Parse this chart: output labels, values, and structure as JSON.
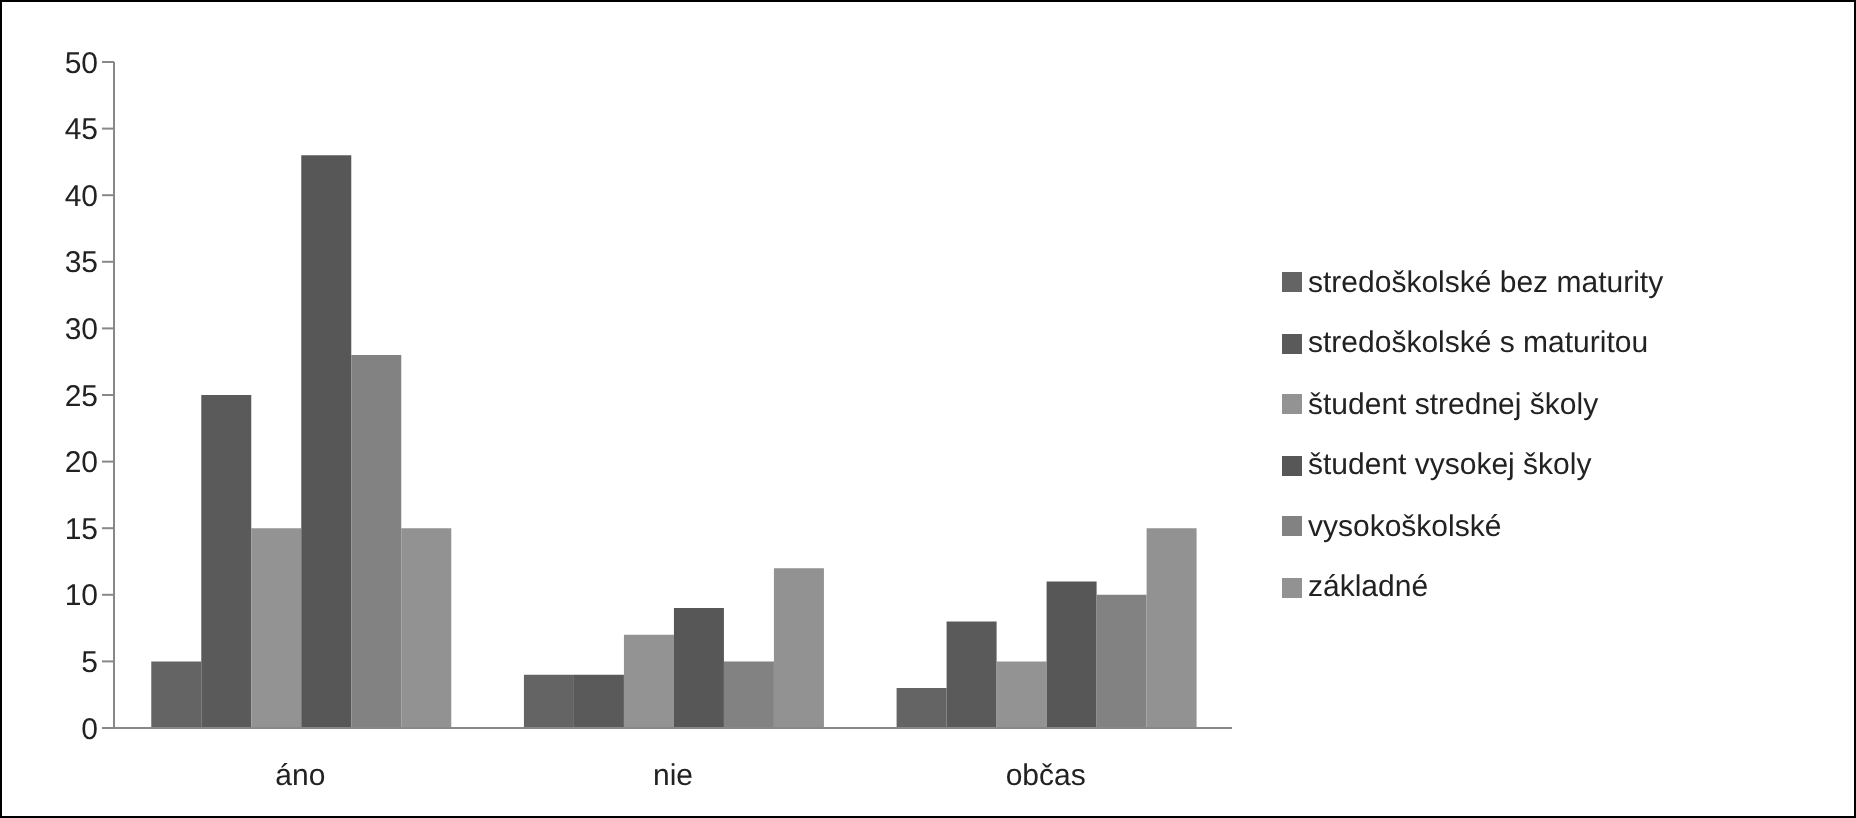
{
  "chart_data": {
    "type": "bar",
    "categories": [
      "áno",
      "nie",
      "občas"
    ],
    "series": [
      {
        "name": "stredoškolské bez maturity",
        "color": "#646464",
        "values": [
          5,
          4,
          3
        ]
      },
      {
        "name": "stredoškolské s maturitou",
        "color": "#5a5a5a",
        "values": [
          25,
          4,
          8
        ]
      },
      {
        "name": "študent strednej školy",
        "color": "#939393",
        "values": [
          15,
          7,
          5
        ]
      },
      {
        "name": "študent vysokej školy",
        "color": "#575757",
        "values": [
          43,
          9,
          11
        ]
      },
      {
        "name": "vysokoškolské",
        "color": "#828282",
        "values": [
          28,
          5,
          10
        ]
      },
      {
        "name": "základné",
        "color": "#929292",
        "values": [
          15,
          12,
          15
        ]
      }
    ],
    "ylim": [
      0,
      50
    ],
    "yticks": [
      0,
      5,
      10,
      15,
      20,
      25,
      30,
      35,
      40,
      45,
      50
    ],
    "grid": false,
    "legend": "right"
  }
}
